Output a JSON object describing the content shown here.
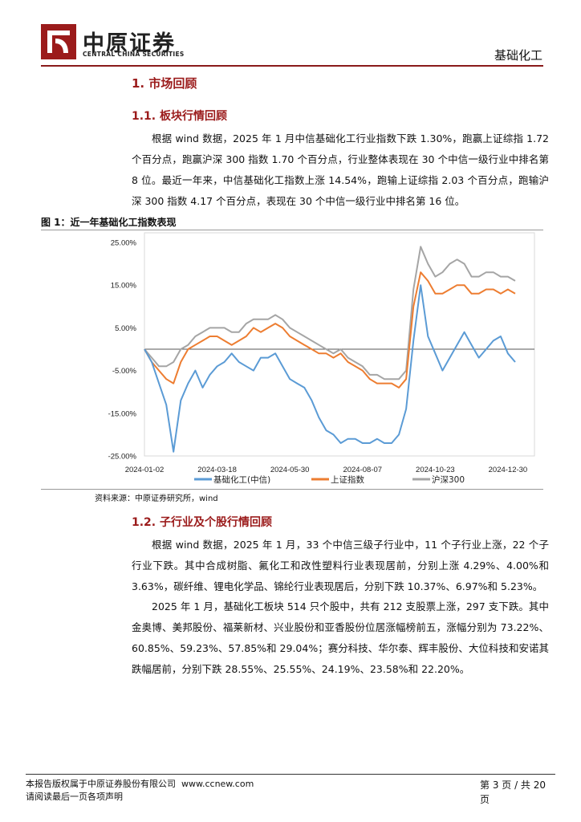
{
  "header": {
    "company_cn": "中原证券",
    "company_en": "CENTRAL CHINA SECURITIES",
    "category": "基础化工"
  },
  "section1": {
    "title": "1. 市场回顾"
  },
  "section1_1": {
    "title": "1.1. 板块行情回顾",
    "paragraph": "根据 wind 数据，2025 年 1 月中信基础化工行业指数下跌 1.30%，跑赢上证综指 1.72 个百分点，跑赢沪深 300 指数 1.70 个百分点，行业整体表现在 30 个中信一级行业中排名第 8 位。最近一年来，中信基础化工指数上涨 14.54%，跑输上证综指 2.03 个百分点，跑输沪深 300 指数 4.17 个百分点，表现在 30 个中信一级行业中排名第 16 位。"
  },
  "figure1": {
    "title": "图 1：近一年基础化工指数表现",
    "source": "资料来源：中原证券研究所，wind"
  },
  "chart_data": {
    "type": "line",
    "title": "",
    "xlabel": "",
    "ylabel": "",
    "ylim": [
      -25,
      25
    ],
    "y_ticks": [
      "25.00%",
      "15.00%",
      "5.00%",
      "-5.00%",
      "-15.00%",
      "-25.00%"
    ],
    "y_tick_values": [
      25,
      15,
      5,
      -5,
      -15,
      -25
    ],
    "x_ticks": [
      "2024-01-02",
      "2024-03-18",
      "2024-05-30",
      "2024-08-07",
      "2024-10-23",
      "2024-12-30"
    ],
    "x_tick_index": [
      0,
      10,
      20,
      30,
      40,
      50
    ],
    "legend_position": "bottom",
    "grid": false,
    "series": [
      {
        "name": "基础化工(中信)",
        "color": "#5b9bd5",
        "values": [
          0,
          -3,
          -8,
          -13,
          -24,
          -12,
          -8,
          -5,
          -9,
          -6,
          -4,
          -3,
          -1,
          -3,
          -4,
          -5,
          -2,
          -2,
          -1,
          -4,
          -7,
          -8,
          -9,
          -12,
          -16,
          -19,
          -20,
          -22,
          -21,
          -21,
          -22,
          -22,
          -21,
          -22,
          -22,
          -20,
          -14,
          2,
          15,
          3,
          -1,
          -5,
          -2,
          1,
          4,
          1,
          -2,
          0,
          2,
          3,
          -1,
          -3
        ]
      },
      {
        "name": "上证指数",
        "color": "#ed7d31",
        "values": [
          0,
          -3,
          -5,
          -7,
          -8,
          -3,
          0,
          1,
          2,
          3,
          3,
          2,
          1,
          2,
          3,
          5,
          4,
          5,
          6,
          5,
          3,
          2,
          1,
          0,
          -1,
          -1,
          -2,
          -1,
          -3,
          -4,
          -5,
          -7,
          -8,
          -8,
          -8,
          -9,
          -7,
          10,
          18,
          16,
          13,
          13,
          14,
          15,
          15,
          13,
          13,
          14,
          14,
          13,
          14,
          13
        ]
      },
      {
        "name": "沪深300",
        "color": "#a5a5a5",
        "values": [
          0,
          -2,
          -4,
          -4,
          -3,
          0,
          1,
          3,
          4,
          5,
          5,
          5,
          4,
          4,
          6,
          7,
          7,
          7,
          8,
          7,
          5,
          4,
          3,
          2,
          1,
          0,
          -1,
          0,
          -2,
          -3,
          -4,
          -6,
          -6,
          -7,
          -7,
          -7,
          -5,
          14,
          24,
          20,
          17,
          18,
          20,
          21,
          20,
          17,
          17,
          18,
          18,
          17,
          17,
          16
        ]
      }
    ]
  },
  "section1_2": {
    "title": "1.2. 子行业及个股行情回顾",
    "paragraph1": "根据 wind 数据，2025 年 1 月，33 个中信三级子行业中，11 个子行业上涨，22 个子行业下跌。其中合成树脂、氟化工和改性塑料行业表现居前，分别上涨 4.29%、4.00%和 3.63%，碳纤维、锂电化学品、锦纶行业表现居后，分别下跌 10.37%、6.97%和 5.23%。",
    "paragraph2": "2025 年 1 月，基础化工板块 514 只个股中，共有 212 支股票上涨，297 支下跌。其中金奥博、美邦股份、福莱新材、兴业股份和亚香股份位居涨幅榜前五，涨幅分别为 73.22%、60.85%、59.23%、57.85%和 29.04%；赛分科技、华尔泰、辉丰股份、大位科技和安诺其跌幅居前，分别下跌 28.55%、25.55%、24.19%、23.58%和 22.20%。"
  },
  "footer": {
    "copyright": "本报告版权属于中原证券股份有限公司",
    "website": "www.ccnew.com",
    "notice": "请阅读最后一页各项声明",
    "page": "第 3 页 / 共 20 页"
  }
}
